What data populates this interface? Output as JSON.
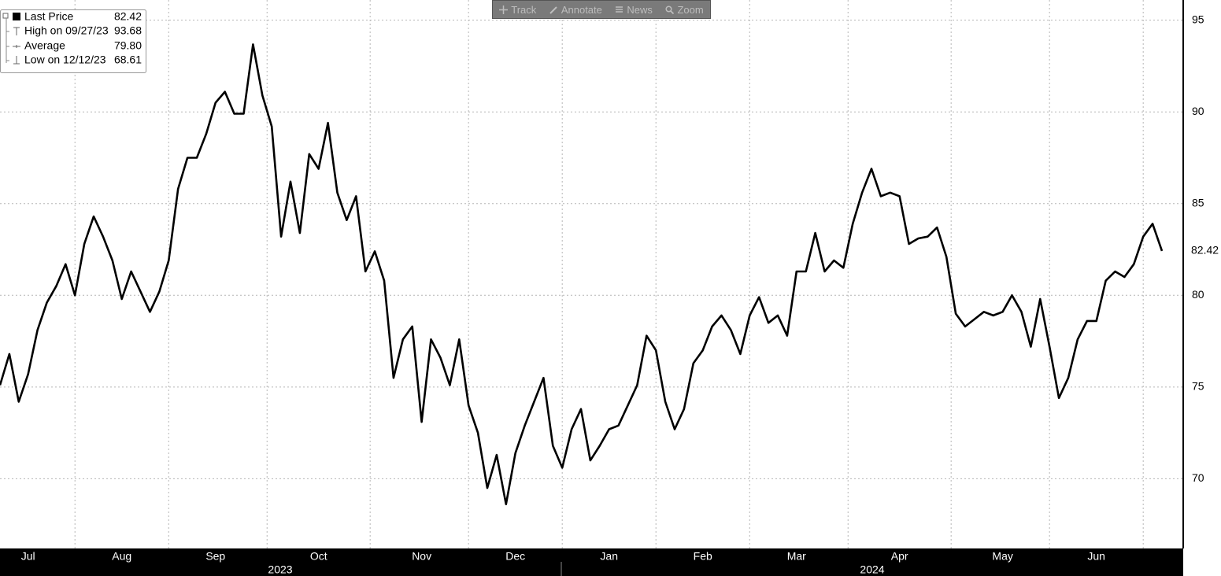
{
  "chart_data": {
    "type": "line",
    "categories": [
      null,
      null,
      null,
      "Jul",
      null,
      null,
      null,
      null,
      null,
      null,
      null,
      null,
      null,
      "Aug",
      null,
      null,
      null,
      null,
      null,
      null,
      null,
      null,
      null,
      "Sep",
      null,
      null,
      null,
      null,
      null,
      null,
      null,
      null,
      null,
      null,
      "Oct",
      null,
      null,
      null,
      null,
      null,
      null,
      null,
      null,
      null,
      null,
      "Nov",
      null,
      null,
      null,
      null,
      null,
      null,
      null,
      null,
      null,
      "Dec",
      null,
      null,
      null,
      null,
      null,
      null,
      null,
      null,
      null,
      "Jan",
      null,
      null,
      null,
      null,
      null,
      null,
      null,
      null,
      null,
      "Feb",
      null,
      null,
      null,
      null,
      null,
      null,
      null,
      null,
      null,
      "Mar",
      null,
      null,
      null,
      null,
      null,
      null,
      null,
      null,
      null,
      null,
      "Apr",
      null,
      null,
      null,
      null,
      null,
      null,
      null,
      null,
      null,
      null,
      "May",
      null,
      null,
      null,
      null,
      null,
      null,
      null,
      null,
      null,
      "Jun",
      null,
      null,
      null,
      null,
      null,
      null,
      null
    ],
    "series": [
      {
        "name": "Last Price",
        "color": "#000000",
        "values": [
          75.1,
          76.8,
          74.2,
          75.7,
          78.1,
          79.6,
          80.5,
          81.7,
          80.0,
          82.8,
          84.3,
          83.2,
          81.9,
          79.8,
          81.3,
          80.2,
          79.1,
          80.2,
          81.9,
          85.8,
          87.5,
          87.5,
          88.8,
          90.5,
          91.1,
          89.9,
          89.9,
          93.68,
          90.9,
          89.2,
          83.2,
          86.2,
          83.4,
          87.7,
          86.9,
          89.4,
          85.6,
          84.1,
          85.4,
          81.3,
          82.4,
          80.8,
          75.5,
          77.6,
          78.3,
          73.1,
          77.6,
          76.6,
          75.1,
          77.6,
          74.0,
          72.5,
          69.5,
          71.3,
          68.61,
          71.4,
          72.9,
          74.2,
          75.5,
          71.8,
          70.6,
          72.7,
          73.8,
          71.0,
          71.8,
          72.7,
          72.9,
          74.0,
          75.1,
          77.8,
          77.0,
          74.2,
          72.7,
          73.8,
          76.3,
          77.0,
          78.3,
          78.9,
          78.1,
          76.8,
          78.9,
          79.9,
          78.5,
          78.9,
          77.8,
          81.3,
          81.3,
          83.4,
          81.3,
          81.9,
          81.5,
          83.9,
          85.6,
          86.9,
          85.4,
          85.6,
          85.4,
          82.8,
          83.1,
          83.2,
          83.7,
          82.1,
          79.0,
          78.3,
          78.7,
          79.1,
          78.9,
          79.1,
          80.0,
          79.1,
          77.2,
          79.8,
          77.2,
          74.4,
          75.5,
          77.6,
          78.6,
          78.6,
          80.8,
          81.3,
          81.0,
          81.7,
          83.2,
          83.9,
          82.42
        ]
      }
    ],
    "last_price": 82.42,
    "legend_stats": {
      "labels": [
        "High on 09/27/23",
        "Average",
        "Low on 12/12/23"
      ],
      "values": [
        93.68,
        79.8,
        68.61
      ],
      "value_labels": [
        "93.68",
        "79.80",
        "68.61"
      ]
    },
    "years": [
      "2023",
      "2024"
    ],
    "ylim": [
      66.2,
      96.1
    ],
    "yticks": [
      70,
      75,
      80,
      85,
      90,
      95
    ],
    "grid": true
  },
  "toolbar": [
    "Track",
    "Annotate",
    "News",
    "Zoom"
  ]
}
